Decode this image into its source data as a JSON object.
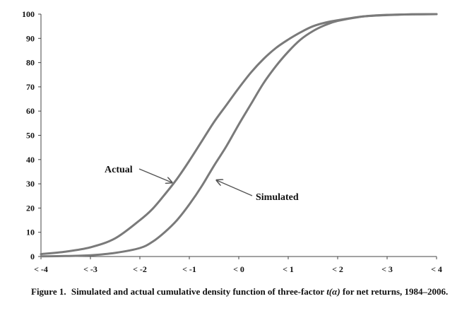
{
  "chart_data": {
    "type": "line",
    "x_tick_labels": [
      "< -4",
      "< -3",
      "< -2",
      "< -1",
      "< 0",
      "< 1",
      "< 2",
      "< 3",
      "< 4"
    ],
    "x_ticks": [
      -4,
      -3,
      -2,
      -1,
      0,
      1,
      2,
      3,
      4
    ],
    "xlim": [
      -4,
      4
    ],
    "y_ticks": [
      0,
      10,
      20,
      30,
      40,
      50,
      60,
      70,
      80,
      90,
      100
    ],
    "ylim": [
      0,
      100
    ],
    "grid": false,
    "line_color": "#7a7a7a",
    "series": [
      {
        "name": "Actual",
        "x": [
          -4,
          -3.5,
          -3,
          -2.5,
          -2,
          -1.75,
          -1.5,
          -1.25,
          -1,
          -0.75,
          -0.5,
          -0.25,
          0,
          0.25,
          0.5,
          0.75,
          1,
          1.25,
          1.5,
          1.75,
          2,
          2.5,
          3,
          3.5,
          4
        ],
        "y": [
          1,
          2,
          3.8,
          7.5,
          15,
          19.5,
          25.5,
          32,
          39.5,
          47.5,
          55.5,
          62.5,
          69.5,
          76,
          81.5,
          86,
          89.5,
          92.5,
          95,
          96.5,
          97.5,
          99,
          99.6,
          99.9,
          100
        ]
      },
      {
        "name": "Simulated",
        "x": [
          -4,
          -3.5,
          -3,
          -2.5,
          -2,
          -1.75,
          -1.5,
          -1.25,
          -1,
          -0.75,
          -0.5,
          -0.25,
          0,
          0.25,
          0.5,
          0.75,
          1,
          1.25,
          1.5,
          1.75,
          2,
          2.5,
          3,
          3.5,
          4
        ],
        "y": [
          0.1,
          0.2,
          0.5,
          1.5,
          3.5,
          6,
          10,
          15,
          21.5,
          29,
          37.5,
          45.5,
          54.5,
          63,
          71.5,
          78.5,
          84.5,
          89.5,
          93,
          95.5,
          97.2,
          99,
          99.7,
          99.9,
          100
        ]
      }
    ],
    "annotations": [
      {
        "text": "Actual",
        "series": "Actual",
        "target": [
          -1.35,
          30.5
        ]
      },
      {
        "text": "Simulated",
        "series": "Simulated",
        "target": [
          -0.45,
          31.5
        ]
      }
    ]
  },
  "caption": {
    "figure_label": "Figure 1.",
    "text_before": "Simulated and actual cumulative density function of three-factor",
    "italic": "t(α)",
    "text_after": "for net returns, 1984–2006."
  }
}
